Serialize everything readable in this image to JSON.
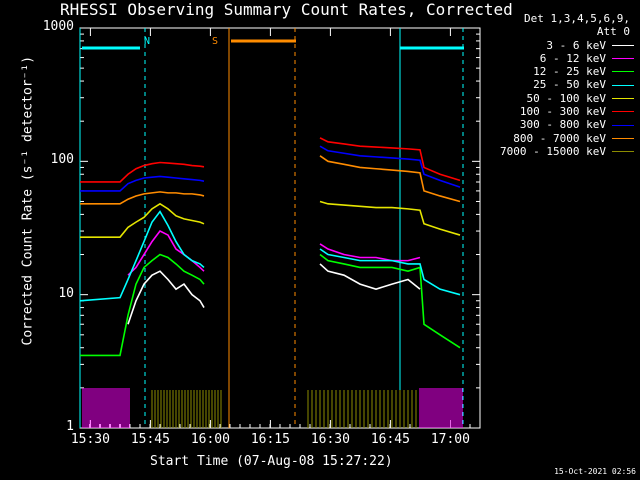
{
  "chart_data": {
    "type": "line",
    "title": "RHESSI Observing Summary Count Rates, Corrected",
    "ylabel": "Corrected Count Rate (s⁻¹ detector⁻¹)",
    "xlabel": "Start Time (07-Aug-08 15:27:22)",
    "yscale": "log",
    "ylim": [
      1,
      1000
    ],
    "xlim_min": [
      0,
      100
    ],
    "y_ticks": [
      "1",
      "10",
      "100",
      "1000"
    ],
    "x_ticks": [
      {
        "label": "15:30",
        "t": 2.6
      },
      {
        "label": "15:45",
        "t": 17.6
      },
      {
        "label": "16:00",
        "t": 32.6
      },
      {
        "label": "16:15",
        "t": 47.6
      },
      {
        "label": "16:30",
        "t": 62.6
      },
      {
        "label": "16:45",
        "t": 77.6
      },
      {
        "label": "17:00",
        "t": 92.6
      }
    ],
    "legend_header": [
      "Det 1,3,4,5,6,9,",
      "Att 0"
    ],
    "series": [
      {
        "name": "3 - 6 keV",
        "color": "#ffffff",
        "x": [
          12,
          14,
          16,
          18,
          20,
          22,
          24,
          26,
          28,
          30,
          31,
          60,
          62,
          66,
          70,
          74,
          78,
          82,
          85
        ],
        "y": [
          6,
          9,
          12,
          14,
          15,
          13,
          11,
          12,
          10,
          9,
          8,
          17,
          15,
          14,
          12,
          11,
          12,
          13,
          11
        ]
      },
      {
        "name": "6 - 12 keV",
        "color": "#ff00ff",
        "x": [
          12,
          14,
          16,
          18,
          20,
          22,
          24,
          26,
          28,
          30,
          31,
          60,
          62,
          66,
          70,
          74,
          78,
          82,
          85
        ],
        "y": [
          14,
          16,
          20,
          25,
          30,
          28,
          22,
          20,
          18,
          16,
          15,
          24,
          22,
          20,
          19,
          19,
          18,
          18,
          19
        ]
      },
      {
        "name": "12 - 25 keV",
        "color": "#00ff00",
        "x": [
          0,
          10,
          12,
          14,
          16,
          18,
          20,
          22,
          24,
          26,
          28,
          30,
          31,
          60,
          62,
          66,
          70,
          74,
          78,
          82,
          85,
          86,
          90,
          95
        ],
        "y": [
          3.5,
          3.5,
          7,
          12,
          16,
          18,
          20,
          19,
          17,
          15,
          14,
          13,
          12,
          20,
          18,
          17,
          16,
          16,
          16,
          15,
          16,
          6,
          5,
          4
        ]
      },
      {
        "name": "25 - 50 keV",
        "color": "#00ffff",
        "x": [
          0,
          10,
          12,
          14,
          16,
          18,
          20,
          22,
          24,
          26,
          28,
          30,
          31,
          60,
          62,
          66,
          70,
          74,
          78,
          82,
          85,
          86,
          90,
          95
        ],
        "y": [
          9,
          9.5,
          13,
          18,
          25,
          35,
          42,
          33,
          25,
          20,
          18,
          17,
          16,
          22,
          20,
          19,
          18,
          18,
          18,
          17,
          17,
          13,
          11,
          10
        ]
      },
      {
        "name": "50 - 100 keV",
        "color": "#e5e500",
        "x": [
          0,
          10,
          12,
          14,
          16,
          18,
          20,
          22,
          24,
          26,
          28,
          30,
          31,
          60,
          62,
          66,
          70,
          74,
          78,
          82,
          85,
          86,
          90,
          95
        ],
        "y": [
          27,
          27,
          32,
          35,
          38,
          44,
          48,
          44,
          39,
          37,
          36,
          35,
          34,
          50,
          48,
          47,
          46,
          45,
          45,
          44,
          43,
          34,
          31,
          28
        ]
      },
      {
        "name": "100 - 300 keV",
        "color": "#ff0000",
        "x": [
          0,
          10,
          12,
          14,
          16,
          18,
          20,
          22,
          24,
          26,
          28,
          30,
          31,
          60,
          62,
          66,
          70,
          74,
          78,
          82,
          85,
          86,
          90,
          95
        ],
        "y": [
          70,
          70,
          80,
          88,
          93,
          96,
          98,
          97,
          96,
          95,
          93,
          92,
          91,
          150,
          140,
          135,
          130,
          128,
          126,
          124,
          122,
          90,
          80,
          72
        ]
      },
      {
        "name": "300 - 800 keV",
        "color": "#0000ff",
        "x": [
          0,
          10,
          12,
          14,
          16,
          18,
          20,
          22,
          24,
          26,
          28,
          30,
          31,
          60,
          62,
          66,
          70,
          74,
          78,
          82,
          85,
          86,
          90,
          95
        ],
        "y": [
          60,
          60,
          68,
          72,
          75,
          76,
          77,
          76,
          75,
          74,
          73,
          72,
          71,
          130,
          120,
          115,
          110,
          108,
          106,
          104,
          102,
          80,
          72,
          64
        ]
      },
      {
        "name": "800 - 7000 keV",
        "color": "#ff8c00",
        "x": [
          0,
          10,
          12,
          14,
          16,
          18,
          20,
          22,
          24,
          26,
          28,
          30,
          31,
          60,
          62,
          66,
          70,
          74,
          78,
          82,
          85,
          86,
          90,
          95
        ],
        "y": [
          48,
          48,
          52,
          55,
          57,
          58,
          59,
          58,
          58,
          57,
          57,
          56,
          55,
          110,
          100,
          95,
          90,
          88,
          86,
          84,
          82,
          60,
          55,
          50
        ]
      },
      {
        "name": "7000 - 15000 keV",
        "color": "#8b8b00",
        "x": [],
        "y": []
      }
    ],
    "annotations": [
      {
        "text": "N",
        "t": 15.0,
        "color": "#00ffff"
      },
      {
        "text": "S",
        "t": 32.0,
        "color": "#ff8c00"
      }
    ]
  },
  "timestamp": "15-Oct-2021 02:56"
}
